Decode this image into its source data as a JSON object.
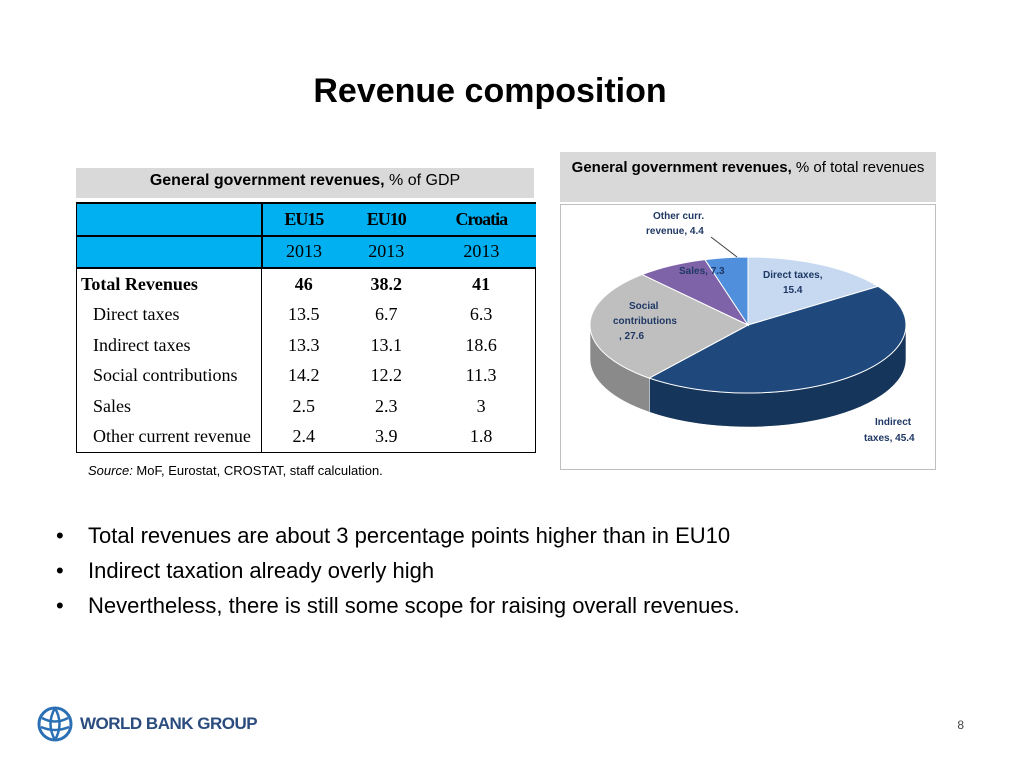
{
  "slide": {
    "title": "Revenue composition",
    "page_number": "8"
  },
  "table": {
    "header_bold": "General government revenues,",
    "header_rest": " % of GDP",
    "columns": [
      "EU15",
      "EU10",
      "Croatia"
    ],
    "years": [
      "2013",
      "2013",
      "2013"
    ],
    "rows": [
      {
        "label": "Total Revenues",
        "values": [
          "46",
          "38.2",
          "41"
        ]
      },
      {
        "label": "Direct taxes",
        "values": [
          "13.5",
          "6.7",
          "6.3"
        ]
      },
      {
        "label": "Indirect taxes",
        "values": [
          "13.3",
          "13.1",
          "18.6"
        ]
      },
      {
        "label": "Social contributions",
        "values": [
          "14.2",
          "12.2",
          "11.3"
        ]
      },
      {
        "label": "Sales",
        "values": [
          "2.5",
          "2.3",
          "3"
        ]
      },
      {
        "label": "Other current revenue",
        "values": [
          "2.4",
          "3.9",
          "1.8"
        ]
      }
    ],
    "source_label": "Source:",
    "source_text": " MoF, Eurostat, CROSTAT, staff calculation."
  },
  "pie": {
    "header_bold": "General government revenues,",
    "header_rest": " % of total revenues",
    "colors": {
      "direct": "#c6d9f1",
      "indirect": "#1f497d",
      "social": "#bfbfbf",
      "sales": "#7f63a8",
      "other": "#4f8fdc"
    },
    "labels": {
      "other_line1": "Other curr.",
      "other_line2": "revenue, 4.4",
      "sales": "Sales, 7.3",
      "direct_line1": "Direct taxes,",
      "direct_line2": "15.4",
      "social_line1": "Social",
      "social_line2": "contributions",
      "social_line3": ", 27.6",
      "indirect_line1": "Indirect",
      "indirect_line2": "taxes, 45.4"
    }
  },
  "chart_data": {
    "type": "pie",
    "title": "General government revenues, % of total revenues",
    "categories": [
      "Direct taxes",
      "Indirect taxes",
      "Social contributions",
      "Sales",
      "Other curr. revenue"
    ],
    "values": [
      15.4,
      45.4,
      27.6,
      7.3,
      4.4
    ]
  },
  "bullets": [
    "Total revenues are about 3 percentage points higher than in EU10",
    "Indirect taxation already overly high",
    "Nevertheless, there is still some scope for raising overall revenues."
  ],
  "logo": {
    "text": "WORLD BANK GROUP",
    "icon": "globe-icon"
  }
}
